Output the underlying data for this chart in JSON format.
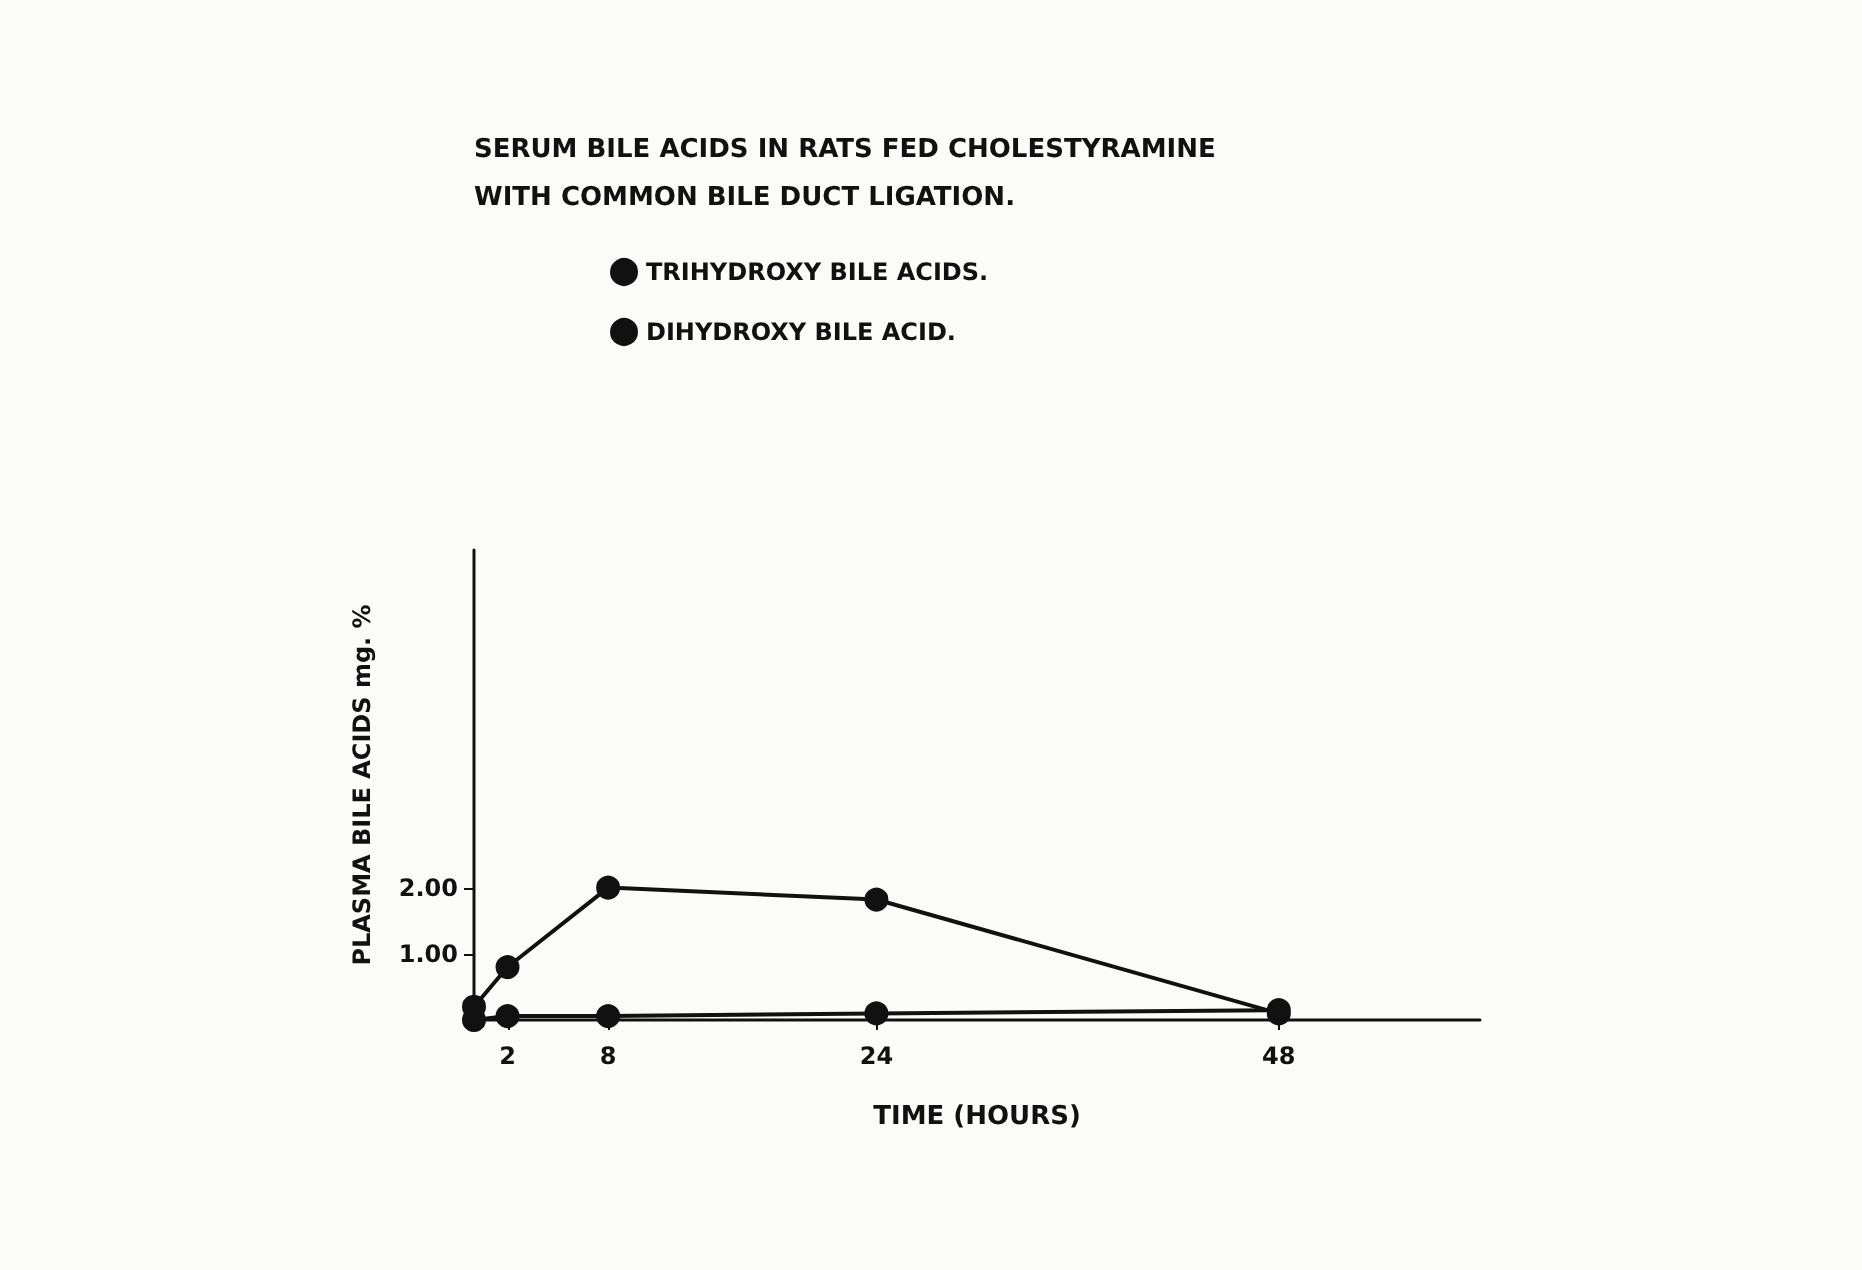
{
  "chart_data": {
    "type": "line",
    "title": "SERUM BILE ACIDS IN RATS FED CHOLESTYRAMINE\nWITH COMMON BILE DUCT LIGATION.",
    "xlabel": "TIME (HOURS)",
    "ylabel": "PLASMA BILE ACIDS mg. %",
    "x": [
      0,
      2,
      8,
      24,
      48
    ],
    "series": [
      {
        "name": "TRIHYDROXY BILE ACIDS.",
        "color": "#111111",
        "values": [
          0.0,
          0.06,
          0.06,
          0.1,
          0.15
        ]
      },
      {
        "name": "DIHYDROXY BILE ACID.",
        "color": "#111111",
        "values": [
          0.2,
          0.8,
          2.0,
          1.82,
          0.1
        ]
      }
    ],
    "xlim": [
      0,
      60
    ],
    "xticks": [
      2,
      8,
      24,
      48
    ],
    "ylim": [
      0,
      7.1
    ],
    "yticks": [
      {
        "value": 1,
        "label": "1.00"
      },
      {
        "value": 2,
        "label": "2.00"
      }
    ],
    "marker": "circle",
    "line_style": "solid",
    "grid": false,
    "legend": "top"
  }
}
